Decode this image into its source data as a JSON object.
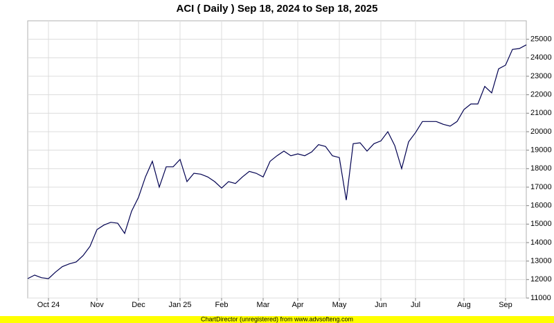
{
  "chart_data": {
    "type": "line",
    "title": "ACI ( Daily ) Sep 18, 2024 to Sep 18, 2025",
    "categories": [
      null,
      null,
      null,
      "Oct 24",
      null,
      null,
      null,
      null,
      null,
      null,
      "Nov",
      null,
      null,
      null,
      null,
      null,
      "Dec",
      null,
      null,
      null,
      null,
      null,
      "Jan 25",
      null,
      null,
      null,
      null,
      null,
      "Feb",
      null,
      null,
      null,
      null,
      null,
      "Mar",
      null,
      null,
      null,
      null,
      "Apr",
      null,
      null,
      null,
      null,
      null,
      "May",
      null,
      null,
      null,
      null,
      null,
      "Jun",
      null,
      null,
      null,
      null,
      "Jul",
      null,
      null,
      null,
      null,
      null,
      null,
      "Aug",
      null,
      null,
      null,
      null,
      null,
      "Sep",
      null,
      null,
      null
    ],
    "values": [
      12050,
      12240,
      12100,
      12050,
      12400,
      12700,
      12850,
      12950,
      13300,
      13800,
      14700,
      14950,
      15100,
      15050,
      14500,
      15700,
      16450,
      17550,
      18400,
      17000,
      18100,
      18100,
      18500,
      17300,
      17750,
      17700,
      17550,
      17300,
      16950,
      17300,
      17200,
      17550,
      17850,
      17750,
      17550,
      18400,
      18700,
      18950,
      18700,
      18800,
      18700,
      18900,
      19300,
      19200,
      18700,
      18600,
      16300,
      19350,
      19400,
      18950,
      19350,
      19500,
      20000,
      19250,
      18000,
      19450,
      19950,
      20550,
      20550,
      20550,
      20400,
      20300,
      20550,
      21200,
      21500,
      21500,
      22450,
      22100,
      23400,
      23600,
      24450,
      24500,
      24700
    ],
    "color": "#000050",
    "ylim": [
      11000,
      26000
    ],
    "yticks": [
      11000,
      12000,
      13000,
      14000,
      15000,
      16000,
      17000,
      18000,
      19000,
      20000,
      21000,
      22000,
      23000,
      24000,
      25000
    ],
    "grid": true,
    "footer": "ChartDirector (unregistered) from www.advsofteng.com"
  }
}
